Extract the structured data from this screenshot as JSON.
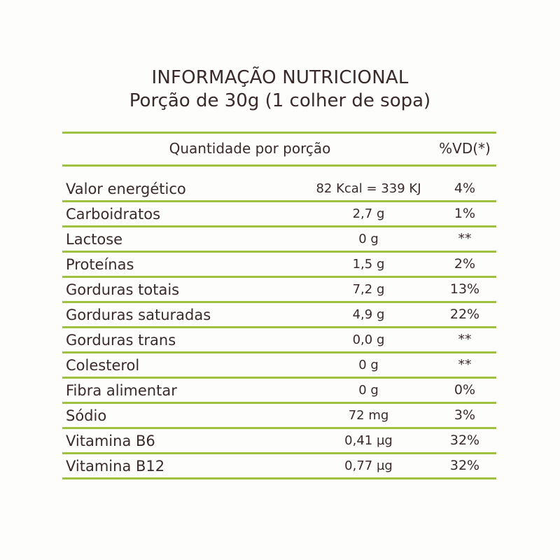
{
  "label": {
    "title": "INFORMAÇÃO NUTRICIONAL",
    "subtitle": "Porção de 30g (1 colher de sopa)",
    "header": {
      "quantity": "Quantidade por porção",
      "vd": "%VD(*)"
    },
    "rows": [
      {
        "name": "Valor energético",
        "amount": "82 Kcal = 339 KJ",
        "vd": "4%"
      },
      {
        "name": "Carboidratos",
        "amount": "2,7 g",
        "vd": "1%"
      },
      {
        "name": "Lactose",
        "amount": "0 g",
        "vd": "**"
      },
      {
        "name": "Proteínas",
        "amount": "1,5 g",
        "vd": "2%"
      },
      {
        "name": "Gorduras totais",
        "amount": "7,2 g",
        "vd": "13%"
      },
      {
        "name": "Gorduras saturadas",
        "amount": "4,9 g",
        "vd": "22%"
      },
      {
        "name": "Gorduras trans",
        "amount": "0,0 g",
        "vd": "**"
      },
      {
        "name": "Colesterol",
        "amount": "0 g",
        "vd": "**"
      },
      {
        "name": "Fibra alimentar",
        "amount": "0 g",
        "vd": "0%"
      },
      {
        "name": "Sódio",
        "amount": "72 mg",
        "vd": "3%"
      },
      {
        "name": "Vitamina B6",
        "amount": "0,41 µg",
        "vd": "32%"
      },
      {
        "name": "Vitamina B12",
        "amount": "0,77 µg",
        "vd": "32%"
      }
    ]
  },
  "colors": {
    "rule": "#9ec13f",
    "text": "#3a2a2c",
    "background": "#fdfdfb"
  }
}
